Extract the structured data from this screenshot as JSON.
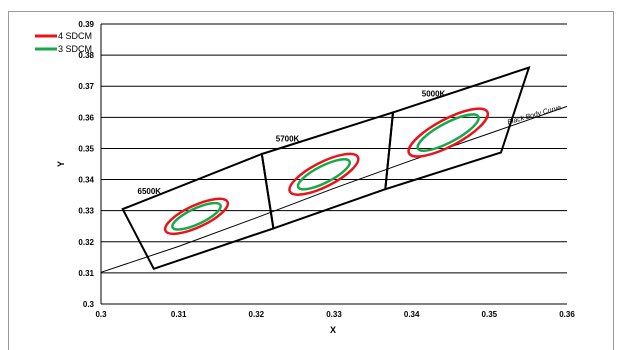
{
  "page_title": "",
  "chart_data": {
    "type": "line",
    "xlabel": "X",
    "ylabel": "Y",
    "xlim": [
      0.3,
      0.36
    ],
    "ylim": [
      0.3,
      0.39
    ],
    "x_ticks": [
      "0.3",
      "0.31",
      "0.32",
      "0.33",
      "0.34",
      "0.35",
      "0.36"
    ],
    "y_ticks": [
      "0.3",
      "0.31",
      "0.32",
      "0.33",
      "0.34",
      "0.35",
      "0.36",
      "0.37",
      "0.38",
      "0.39"
    ],
    "grid": "horizontal",
    "legend_position": "top-left",
    "legend": [
      {
        "name": "4 SDCM",
        "color": "#e8141b"
      },
      {
        "name": "3 SDCM",
        "color": "#17a84b"
      }
    ],
    "colors": {
      "boundary": "#000000",
      "four_sdcm": "#e8141b",
      "three_sdcm": "#17a84b",
      "grid": "#000000"
    },
    "black_body_curve": {
      "label": "Black Body Curve",
      "points": [
        [
          0.3,
          0.3102
        ],
        [
          0.31,
          0.3185
        ],
        [
          0.32,
          0.3277
        ],
        [
          0.33,
          0.3372
        ],
        [
          0.34,
          0.3462
        ],
        [
          0.35,
          0.3548
        ],
        [
          0.36,
          0.3635
        ]
      ]
    },
    "quadrangles": [
      {
        "label": "6500K",
        "label_at": [
          0.3047,
          0.3354
        ],
        "polygon": [
          [
            0.3028,
            0.3305
          ],
          [
            0.3207,
            0.3482
          ],
          [
            0.3222,
            0.3243
          ],
          [
            0.3068,
            0.3113
          ]
        ]
      },
      {
        "label": "5700K",
        "label_at": [
          0.3225,
          0.3522
        ],
        "polygon": [
          [
            0.3207,
            0.3482
          ],
          [
            0.3376,
            0.3616
          ],
          [
            0.3366,
            0.3369
          ],
          [
            0.3222,
            0.3243
          ]
        ]
      },
      {
        "label": "5000K",
        "label_at": [
          0.3413,
          0.3667
        ],
        "polygon": [
          [
            0.3376,
            0.3616
          ],
          [
            0.3551,
            0.376
          ],
          [
            0.3515,
            0.3487
          ],
          [
            0.3366,
            0.3369
          ]
        ]
      }
    ],
    "ellipses": [
      {
        "series": "4 SDCM",
        "center": [
          0.3123,
          0.3282
        ],
        "rx": 0.0044,
        "ry": 0.0035,
        "angle_deg": -25
      },
      {
        "series": "3 SDCM",
        "center": [
          0.3123,
          0.3282
        ],
        "rx": 0.0034,
        "ry": 0.0025,
        "angle_deg": -25
      },
      {
        "series": "4 SDCM",
        "center": [
          0.3287,
          0.3417
        ],
        "rx": 0.0049,
        "ry": 0.0039,
        "angle_deg": -27
      },
      {
        "series": "3 SDCM",
        "center": [
          0.3287,
          0.3417
        ],
        "rx": 0.0037,
        "ry": 0.0027,
        "angle_deg": -27
      },
      {
        "series": "4 SDCM",
        "center": [
          0.3447,
          0.3551
        ],
        "rx": 0.0057,
        "ry": 0.0043,
        "angle_deg": -28
      },
      {
        "series": "3 SDCM",
        "center": [
          0.3447,
          0.3551
        ],
        "rx": 0.0044,
        "ry": 0.0031,
        "angle_deg": -28
      }
    ]
  }
}
